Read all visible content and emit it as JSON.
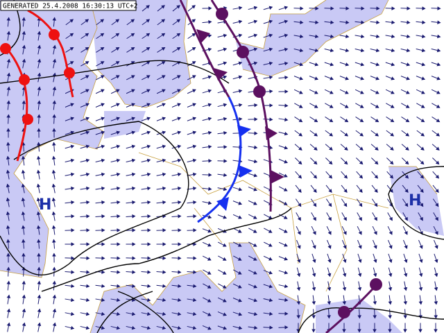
{
  "header": {
    "timestamp": "GENERATED 25.4.2008 16:30:13 UTC+2"
  },
  "pressure_labels": [
    "H",
    "H"
  ]
}
